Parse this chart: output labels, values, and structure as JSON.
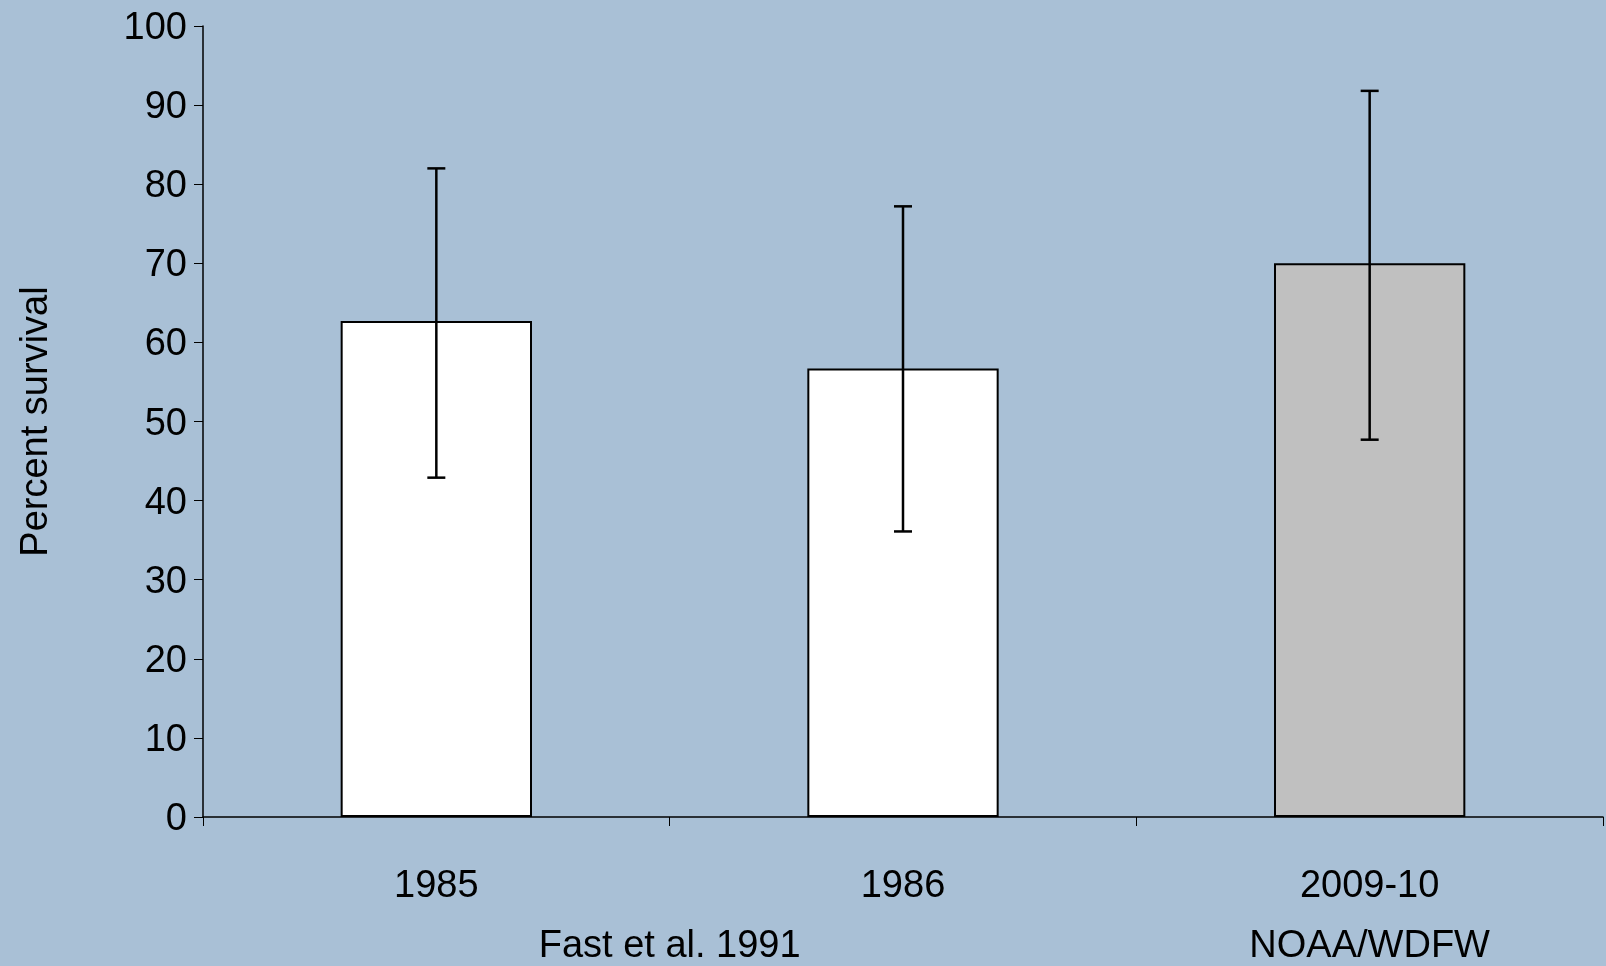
{
  "chart_data": {
    "type": "bar",
    "ylabel": "Percent survival",
    "categories": [
      "1985",
      "1986",
      "2009-10"
    ],
    "values": [
      62.7,
      56.7,
      70.0
    ],
    "colors": [
      "#ffffff",
      "#ffffff",
      "#c0c0c0"
    ],
    "errors": [
      [
        42.9,
        82.0
      ],
      [
        36.1,
        77.2
      ],
      [
        47.7,
        91.8
      ]
    ],
    "ylim": [
      0,
      100
    ],
    "yticks": [
      0,
      10,
      20,
      30,
      40,
      50,
      60,
      70,
      80,
      90,
      100
    ],
    "grid": false,
    "annotations": [
      "Fast et al. 1991",
      "NOAA/WDFW"
    ]
  }
}
